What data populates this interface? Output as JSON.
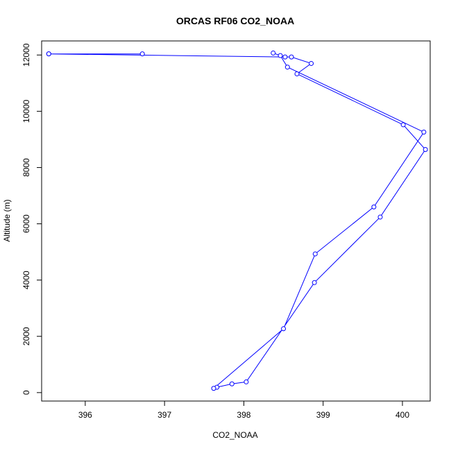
{
  "chart_data": {
    "type": "line",
    "title": "ORCAS RF06 CO2_NOAA",
    "xlabel": "CO2_NOAA",
    "ylabel": "Altitude (m)",
    "xlim": [
      395.45,
      400.35
    ],
    "ylim": [
      -300,
      12500
    ],
    "x_ticks": [
      396,
      397,
      398,
      399,
      400
    ],
    "y_ticks": [
      0,
      2000,
      4000,
      6000,
      8000,
      10000,
      12000
    ],
    "grid": false,
    "line_color": "#0000ff",
    "marker": "open-circle",
    "series": [
      {
        "points": [
          {
            "x": 395.54,
            "y": 12040
          },
          {
            "x": 396.72,
            "y": 12040
          },
          {
            "x": 395.54,
            "y": 12040
          },
          {
            "x": 398.52,
            "y": 11930
          },
          {
            "x": 398.6,
            "y": 11930
          },
          {
            "x": 398.85,
            "y": 11700
          },
          {
            "x": 398.67,
            "y": 11330
          },
          {
            "x": 400.01,
            "y": 9520
          },
          {
            "x": 400.29,
            "y": 8640
          },
          {
            "x": 399.72,
            "y": 6240
          },
          {
            "x": 398.89,
            "y": 3910
          },
          {
            "x": 398.03,
            "y": 380
          },
          {
            "x": 397.85,
            "y": 310
          },
          {
            "x": 397.66,
            "y": 190
          },
          {
            "x": 397.62,
            "y": 150
          },
          {
            "x": 398.5,
            "y": 2270
          },
          {
            "x": 398.9,
            "y": 4930
          },
          {
            "x": 399.64,
            "y": 6600
          },
          {
            "x": 400.27,
            "y": 9260
          },
          {
            "x": 398.55,
            "y": 11570
          },
          {
            "x": 398.46,
            "y": 11980
          },
          {
            "x": 398.37,
            "y": 12070
          }
        ]
      }
    ]
  }
}
